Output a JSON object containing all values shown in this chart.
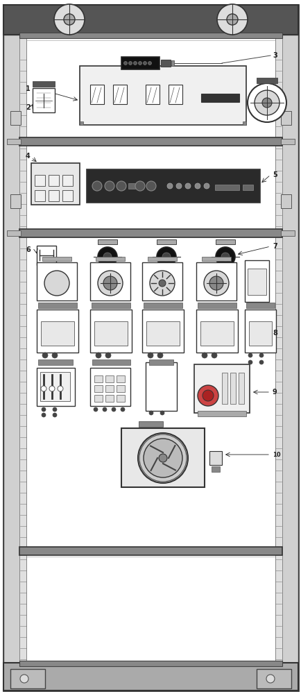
{
  "bg_color": "#ffffff",
  "line_color": "#222222",
  "cabinet_bg": "#f5f5f2"
}
